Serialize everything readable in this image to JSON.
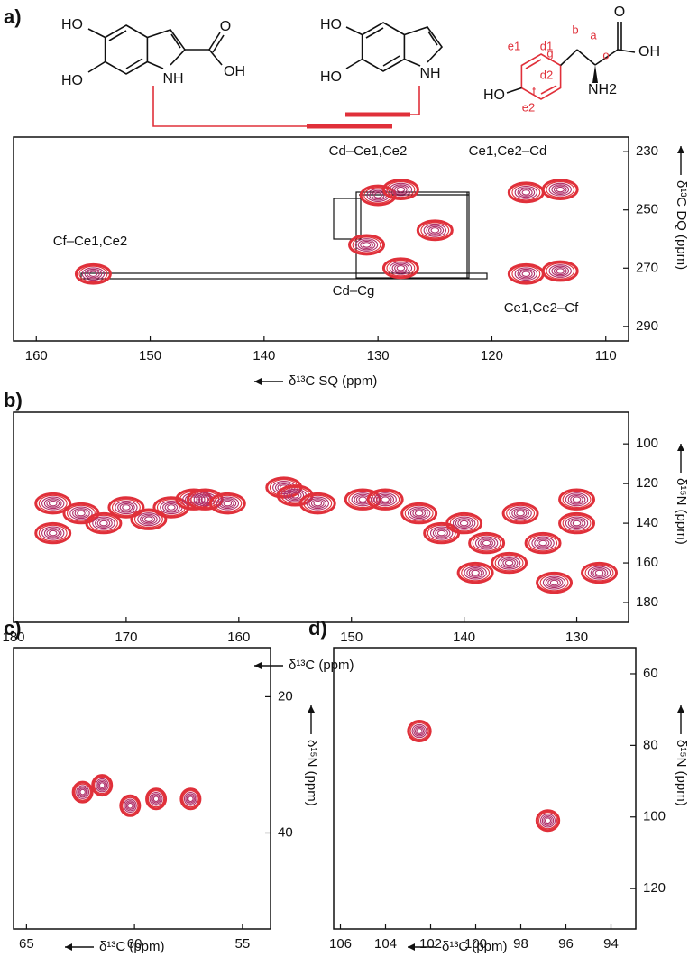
{
  "structures": {
    "mol1": [
      "HO",
      "HO",
      "NH",
      "O",
      "OH"
    ],
    "mol2": [
      "HO",
      "HO",
      "NH"
    ],
    "mol3": [
      "HO",
      "NH2",
      "O",
      "OH",
      "a",
      "b",
      "d1",
      "d2",
      "e1",
      "e2",
      "f",
      "g",
      "o"
    ]
  },
  "chart_data": [
    {
      "type": "contour",
      "panel": "a)",
      "xlabel": "δ¹³C SQ (ppm)",
      "ylabel": "δ¹³C DQ (ppm)",
      "xlim": [
        108,
        162
      ],
      "x_inverted": true,
      "ylim": [
        225,
        295
      ],
      "y_inverted": true,
      "xticks": [
        160,
        150,
        140,
        130,
        120,
        110
      ],
      "yticks": [
        230,
        250,
        270,
        290
      ],
      "annotations": [
        "Cf–Ce1,Ce2",
        "Cd–Ce1,Ce2",
        "Ce1,Ce2–Cd",
        "Cd–Cg",
        "Ce1,Ce2–Cf"
      ],
      "color": "#e0303a",
      "peaks": {
        "x": [
          155,
          130,
          128,
          125,
          131,
          128,
          117,
          114,
          117,
          114
        ],
        "y": [
          272,
          245,
          243,
          257,
          262,
          270,
          244,
          243,
          272,
          271
        ]
      }
    },
    {
      "type": "contour",
      "panel": "b)",
      "xlabel": "δ¹³C (ppm)",
      "ylabel": "δ¹⁵N (ppm)",
      "xlim": [
        125.4,
        180
      ],
      "x_inverted": true,
      "ylim": [
        84,
        190
      ],
      "y_inverted": true,
      "xticks": [
        180,
        170,
        160,
        150,
        140,
        130
      ],
      "yticks": [
        100,
        120,
        140,
        160,
        180
      ],
      "color": "#e0303a",
      "peaks": {
        "x": [
          176.5,
          176.5,
          174,
          172,
          170,
          168,
          166,
          164,
          163,
          161,
          156,
          155,
          153,
          149,
          147,
          144,
          142,
          140,
          139,
          138,
          136,
          135,
          133,
          132,
          130,
          128,
          130
        ],
        "y": [
          130,
          145,
          135,
          140,
          132,
          138,
          132,
          128,
          128,
          130,
          122,
          126,
          130,
          128,
          128,
          135,
          145,
          140,
          165,
          150,
          160,
          135,
          150,
          170,
          140,
          165,
          128
        ]
      }
    },
    {
      "type": "contour",
      "panel": "c)",
      "xlabel": "δ¹³C (ppm)",
      "ylabel": "δ¹⁵N (ppm)",
      "xlim": [
        53.7,
        65.6
      ],
      "x_inverted": true,
      "ylim": [
        12.8,
        54.1
      ],
      "y_inverted": true,
      "xticks": [
        65,
        60,
        55
      ],
      "yticks": [
        20,
        40
      ],
      "color": "#e0303a",
      "peaks": {
        "x": [
          62.4,
          61.5,
          60.2,
          59,
          57.4
        ],
        "y": [
          34,
          33,
          36,
          35,
          35
        ]
      }
    },
    {
      "type": "contour",
      "panel": "d)",
      "xlabel": "δ¹³C (ppm)",
      "ylabel": "δ¹⁵N (ppm)",
      "xlim": [
        92.9,
        106.3
      ],
      "x_inverted": true,
      "ylim": [
        52.7,
        131.3
      ],
      "y_inverted": true,
      "xticks": [
        106,
        104,
        102,
        100,
        98,
        96,
        94
      ],
      "yticks": [
        60,
        80,
        100,
        120
      ],
      "color": "#e0303a",
      "peaks": {
        "x": [
          102.5,
          96.8
        ],
        "y": [
          76,
          101
        ]
      }
    }
  ]
}
